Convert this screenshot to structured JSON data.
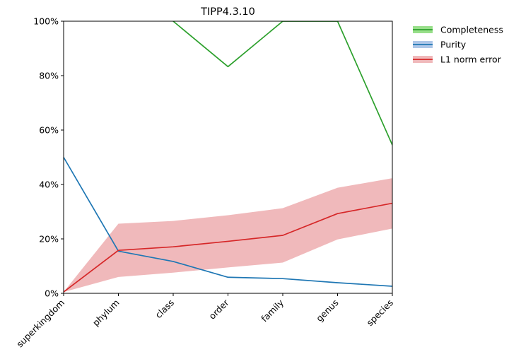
{
  "chart_data": {
    "type": "line",
    "title": "TIPP4.3.10",
    "xlabel": "",
    "ylabel": "",
    "categories": [
      "superkingdom",
      "phylum",
      "class",
      "order",
      "family",
      "genus",
      "species"
    ],
    "ylim": [
      0,
      100
    ],
    "y_ticks": [
      0,
      20,
      40,
      60,
      80,
      100
    ],
    "y_tick_labels": [
      "0%",
      "20%",
      "40%",
      "60%",
      "80%",
      "100%"
    ],
    "grid": false,
    "legend_position": "outside-top-right",
    "series": [
      {
        "name": "Completeness",
        "color": "#2ca02c",
        "band_color": "#98df8a",
        "values": [
          null,
          null,
          100,
          83.3,
          100,
          100,
          54.5
        ]
      },
      {
        "name": "Purity",
        "color": "#1f77b4",
        "band_color": "#aec7e8",
        "values": [
          50,
          15.5,
          11.7,
          5.9,
          5.4,
          3.9,
          2.6
        ]
      },
      {
        "name": "L1 norm error",
        "color": "#d62728",
        "band_color": "#f0b9bb",
        "values": [
          0.5,
          15.8,
          17.1,
          19.1,
          21.3,
          29.3,
          33.1
        ],
        "band_lower": [
          0.5,
          6.0,
          7.6,
          9.5,
          11.3,
          19.8,
          23.8
        ],
        "band_upper": [
          0.5,
          25.6,
          26.6,
          28.7,
          31.3,
          38.8,
          42.3
        ]
      }
    ]
  }
}
